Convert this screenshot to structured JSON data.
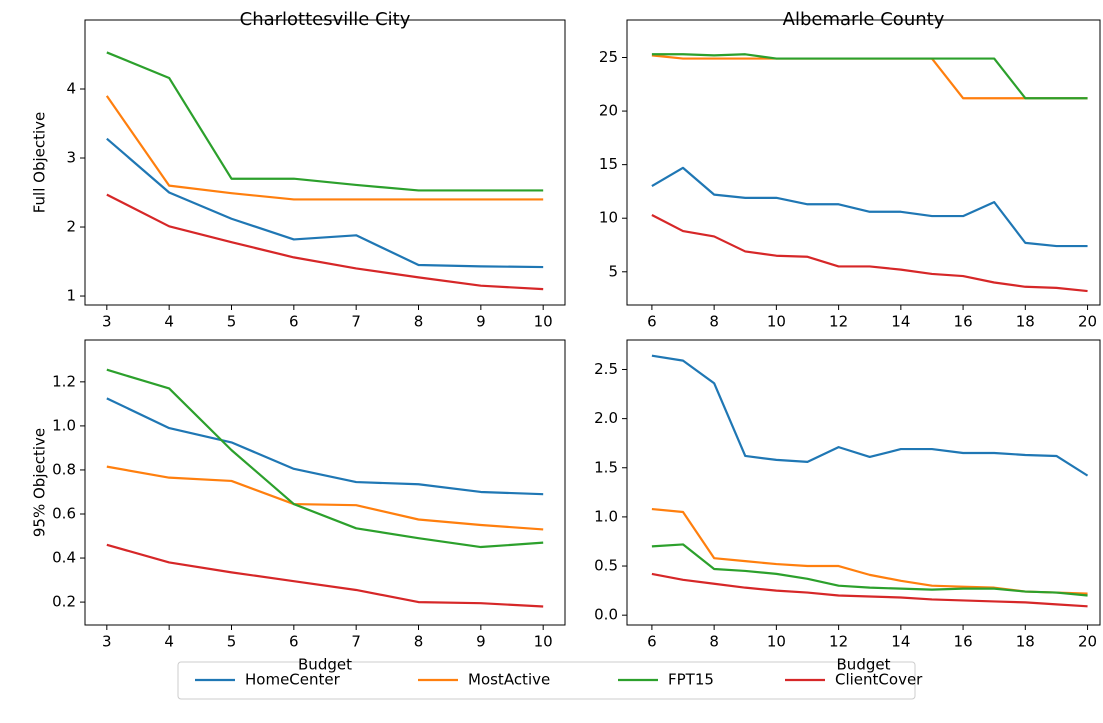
{
  "chart_data": [
    {
      "type": "line",
      "title": "Charlottesville City",
      "ylabel": "Full Objective",
      "x": [
        3,
        4,
        5,
        6,
        7,
        8,
        9,
        10
      ],
      "series": [
        {
          "name": "HomeCenter",
          "color": "#1f77b4",
          "values": [
            3.28,
            2.5,
            2.12,
            1.82,
            1.88,
            1.45,
            1.43,
            1.42
          ]
        },
        {
          "name": "MostActive",
          "color": "#ff7f0e",
          "values": [
            3.9,
            2.6,
            2.49,
            2.4,
            2.4,
            2.4,
            2.4,
            2.4
          ]
        },
        {
          "name": "FPT15",
          "color": "#2ca02c",
          "values": [
            4.53,
            4.16,
            2.7,
            2.7,
            2.61,
            2.53,
            2.53,
            2.53
          ]
        },
        {
          "name": "ClientCover",
          "color": "#d62728",
          "values": [
            2.47,
            2.01,
            1.78,
            1.56,
            1.4,
            1.27,
            1.15,
            1.1
          ]
        }
      ],
      "xlim": [
        2.65,
        10.35
      ],
      "xticks": [
        3,
        4,
        5,
        6,
        7,
        8,
        9,
        10
      ],
      "ylim": [
        0.87,
        5.0
      ],
      "yticks": [
        1,
        2,
        3,
        4
      ],
      "grid": false
    },
    {
      "type": "line",
      "title": "Albemarle County",
      "x": [
        6,
        7,
        8,
        9,
        10,
        11,
        12,
        13,
        14,
        15,
        16,
        17,
        18,
        19,
        20
      ],
      "series": [
        {
          "name": "HomeCenter",
          "color": "#1f77b4",
          "values": [
            13.0,
            14.7,
            12.2,
            11.9,
            11.9,
            11.3,
            11.3,
            10.6,
            10.6,
            10.2,
            10.2,
            11.5,
            7.7,
            7.4,
            7.4
          ]
        },
        {
          "name": "MostActive",
          "color": "#ff7f0e",
          "values": [
            25.2,
            24.9,
            24.9,
            24.9,
            24.9,
            24.9,
            24.9,
            24.9,
            24.9,
            24.9,
            21.2,
            21.2,
            21.2,
            21.2,
            21.2
          ]
        },
        {
          "name": "FPT15",
          "color": "#2ca02c",
          "values": [
            25.3,
            25.3,
            25.2,
            25.3,
            24.9,
            24.9,
            24.9,
            24.9,
            24.9,
            24.9,
            24.9,
            24.9,
            21.2,
            21.2,
            21.2
          ]
        },
        {
          "name": "ClientCover",
          "color": "#d62728",
          "values": [
            10.3,
            8.8,
            8.3,
            6.9,
            6.5,
            6.4,
            5.5,
            5.5,
            5.2,
            4.8,
            4.6,
            4.0,
            3.6,
            3.5,
            3.2
          ]
        }
      ],
      "xlim": [
        5.2,
        20.4
      ],
      "xticks": [
        6,
        8,
        10,
        12,
        14,
        16,
        18,
        20
      ],
      "ylim": [
        1.9,
        28.5
      ],
      "yticks": [
        5,
        10,
        15,
        20,
        25
      ],
      "grid": false
    },
    {
      "type": "line",
      "ylabel": "95% Objective",
      "xlabel": "Budget",
      "x": [
        3,
        4,
        5,
        6,
        7,
        8,
        9,
        10
      ],
      "series": [
        {
          "name": "HomeCenter",
          "color": "#1f77b4",
          "values": [
            1.125,
            0.99,
            0.925,
            0.805,
            0.745,
            0.735,
            0.7,
            0.69
          ]
        },
        {
          "name": "MostActive",
          "color": "#ff7f0e",
          "values": [
            0.815,
            0.765,
            0.75,
            0.645,
            0.64,
            0.575,
            0.55,
            0.53
          ]
        },
        {
          "name": "FPT15",
          "color": "#2ca02c",
          "values": [
            1.255,
            1.17,
            0.89,
            0.645,
            0.535,
            0.49,
            0.45,
            0.47
          ]
        },
        {
          "name": "ClientCover",
          "color": "#d62728",
          "values": [
            0.46,
            0.38,
            0.335,
            0.295,
            0.255,
            0.2,
            0.195,
            0.18
          ]
        }
      ],
      "xlim": [
        2.65,
        10.35
      ],
      "xticks": [
        3,
        4,
        5,
        6,
        7,
        8,
        9,
        10
      ],
      "ylim": [
        0.096,
        1.39
      ],
      "yticks": [
        0.2,
        0.4,
        0.6,
        0.8,
        {
          "value": 1,
          "label": "1.0"
        },
        1.2
      ],
      "grid": false
    },
    {
      "type": "line",
      "xlabel": "Budget",
      "x": [
        6,
        7,
        8,
        9,
        10,
        11,
        12,
        13,
        14,
        15,
        16,
        17,
        18,
        19,
        20
      ],
      "series": [
        {
          "name": "HomeCenter",
          "color": "#1f77b4",
          "values": [
            2.64,
            2.59,
            2.36,
            1.62,
            1.58,
            1.56,
            1.71,
            1.61,
            1.69,
            1.69,
            1.65,
            1.65,
            1.63,
            1.62,
            1.42
          ]
        },
        {
          "name": "MostActive",
          "color": "#ff7f0e",
          "values": [
            1.08,
            1.05,
            0.58,
            0.55,
            0.52,
            0.5,
            0.5,
            0.41,
            0.35,
            0.3,
            0.29,
            0.28,
            0.24,
            0.23,
            0.22
          ]
        },
        {
          "name": "FPT15",
          "color": "#2ca02c",
          "values": [
            0.7,
            0.72,
            0.47,
            0.45,
            0.42,
            0.37,
            0.3,
            0.28,
            0.27,
            0.26,
            0.27,
            0.27,
            0.24,
            0.23,
            0.2
          ]
        },
        {
          "name": "ClientCover",
          "color": "#d62728",
          "values": [
            0.42,
            0.36,
            0.32,
            0.28,
            0.25,
            0.23,
            0.2,
            0.19,
            0.18,
            0.16,
            0.15,
            0.14,
            0.13,
            0.11,
            0.09
          ]
        }
      ],
      "xlim": [
        5.2,
        20.4
      ],
      "xticks": [
        6,
        8,
        10,
        12,
        14,
        16,
        18,
        20
      ],
      "ylim": [
        -0.1,
        2.8
      ],
      "yticks": [
        {
          "value": 0,
          "label": "0.0"
        },
        0.5,
        {
          "value": 1,
          "label": "1.0"
        },
        1.5,
        {
          "value": 2,
          "label": "2.0"
        },
        2.5
      ],
      "grid": false
    }
  ]
}
